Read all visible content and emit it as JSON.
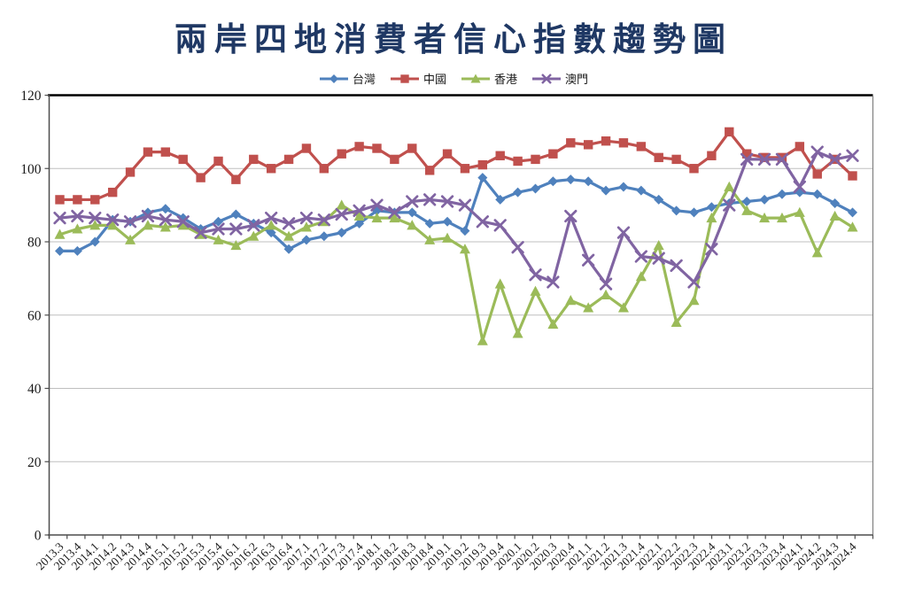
{
  "chart_data": {
    "type": "line",
    "title": "兩岸四地消費者信心指數趨勢圖",
    "title_color": "#1F3864",
    "xlabel": "",
    "ylabel": "",
    "ylim": [
      0,
      120
    ],
    "yticks": [
      0,
      20,
      40,
      60,
      80,
      100,
      120
    ],
    "grid": true,
    "legend_position": "top",
    "colors": {
      "gridline": "#BFBFBF",
      "axis": "#4d4d4d",
      "top_border": "#000000",
      "right_border": "#808080",
      "tick_label": "#1a1a1a",
      "legend_text": "#1a1a1a"
    },
    "categories": [
      "2013.3",
      "2013.4",
      "2014.1",
      "2014.2",
      "2014.3",
      "2014.4",
      "2015.1",
      "2015.2",
      "2015.3",
      "2015.4",
      "2016.1",
      "2016.2",
      "2016.3",
      "2016.4",
      "2017.1",
      "2017.2",
      "2017.3",
      "2017.4",
      "2018.1",
      "2018.2",
      "2018.3",
      "2018.4",
      "2019.1",
      "2019.2",
      "2019.3",
      "2019.4",
      "2020.1",
      "2020.2",
      "2020.3",
      "2020.4",
      "2021.1",
      "2021.2",
      "2021.3",
      "2021.4",
      "2022.1",
      "2022.2",
      "2022.3",
      "2022.4",
      "2023.1",
      "2023.2",
      "2023.3",
      "2023.4",
      "2024.1",
      "2024.2",
      "2024.3",
      "2024.4"
    ],
    "series": [
      {
        "key": "taiwan",
        "name": "台灣",
        "color": "#4F81BD",
        "marker": "diamond",
        "values": [
          77.5,
          77.5,
          80,
          86,
          85.5,
          88,
          89,
          86.5,
          83.5,
          85.5,
          87.5,
          85,
          82.5,
          78,
          80.5,
          81.5,
          82.5,
          85,
          88.5,
          88,
          88,
          85,
          85.5,
          83,
          97.5,
          91.5,
          93.5,
          94.5,
          96.5,
          97,
          96.5,
          94,
          95,
          94,
          91.5,
          88.5,
          88,
          89.5,
          90.5,
          91,
          91.5,
          93,
          93.5,
          93,
          90.5,
          88
        ]
      },
      {
        "key": "china",
        "name": "中國",
        "color": "#C0504D",
        "marker": "square",
        "values": [
          91.5,
          91.5,
          91.5,
          93.5,
          99,
          104.5,
          104.5,
          102.5,
          97.5,
          102,
          97,
          102.5,
          100,
          102.5,
          105.5,
          100,
          104,
          106,
          105.5,
          102.5,
          105.5,
          99.5,
          104,
          100,
          101,
          103.5,
          102,
          102.5,
          104,
          107,
          106.5,
          107.5,
          107,
          106,
          103,
          102.5,
          100,
          103.5,
          110,
          104,
          103,
          103,
          106,
          98.5,
          102.5,
          98
        ]
      },
      {
        "key": "hongkong",
        "name": "香港",
        "color": "#9BBB59",
        "marker": "triangle",
        "values": [
          82,
          83.5,
          84.5,
          84.5,
          80.5,
          84.5,
          84,
          84.5,
          82,
          80.5,
          79,
          81.5,
          84.5,
          81.5,
          84,
          85.5,
          90,
          87,
          86.5,
          86.5,
          84.5,
          80.5,
          81,
          78,
          53,
          68.5,
          55,
          66.5,
          57.5,
          64,
          62,
          65.5,
          62,
          70.5,
          79,
          58,
          64,
          86.5,
          95,
          88.5,
          86.5,
          86.5,
          88,
          77,
          87,
          84
        ]
      },
      {
        "key": "macau",
        "name": "澳門",
        "color": "#8064A2",
        "marker": "x",
        "values": [
          86.5,
          87,
          86.5,
          86,
          85.5,
          87,
          86,
          85.5,
          82.5,
          83.5,
          83.5,
          84.5,
          86.5,
          85,
          86.5,
          86,
          87.5,
          88.5,
          90,
          88,
          91,
          91.5,
          91,
          90,
          85.5,
          84.5,
          78.5,
          71,
          69,
          87,
          75,
          68.5,
          82.5,
          76,
          75.5,
          73.5,
          69,
          78,
          90,
          102.5,
          102.5,
          102.5,
          95,
          104.5,
          102.5,
          103.5
        ]
      }
    ]
  }
}
